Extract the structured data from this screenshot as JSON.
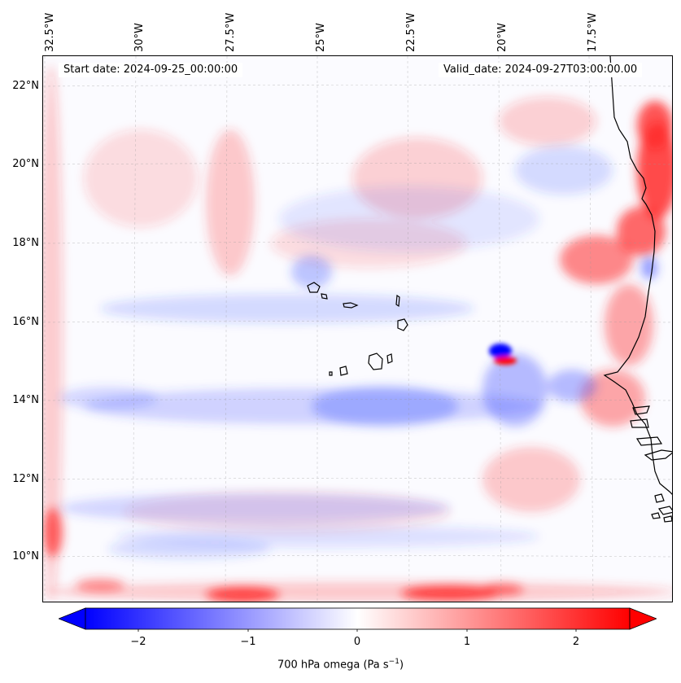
{
  "map": {
    "start_date": "Start date: 2024-09-25_00:00:00",
    "valid_date": "Valid_date: 2024-09-27T03:00:00.00",
    "lon_labels": [
      "32.5°W",
      "30°W",
      "27.5°W",
      "25°W",
      "22.5°W",
      "20°W",
      "17.5°W"
    ],
    "lat_labels": [
      "22°N",
      "20°N",
      "18°N",
      "16°N",
      "14°N",
      "12°N",
      "10°N"
    ],
    "colors": {
      "positive": "#ff0000",
      "negative": "#0000ff",
      "neutral": "#ffffff",
      "coast": "#000000"
    }
  },
  "colorbar": {
    "ticks": [
      "−2",
      "−1",
      "0",
      "1",
      "2"
    ],
    "label_main": "700 hPa omega (Pa s",
    "label_sup": "−1",
    "label_end": ")"
  }
}
